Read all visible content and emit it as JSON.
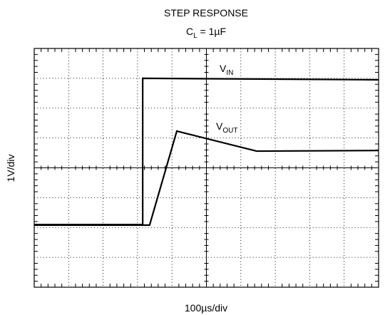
{
  "chart_data": {
    "type": "line",
    "title": "STEP RESPONSE",
    "subtitle": {
      "main": "C",
      "sub": "L",
      "rest": " = 1µF"
    },
    "xlabel": "100µs/div",
    "ylabel": "1V/div",
    "xlim": [
      0,
      1000
    ],
    "ylim": [
      0,
      8
    ],
    "xticks": [
      0,
      100,
      200,
      300,
      400,
      500,
      600,
      700,
      800,
      900,
      1000
    ],
    "yticks": [
      0,
      1,
      2,
      3,
      4,
      5,
      6,
      7,
      8
    ],
    "grid": true,
    "series": [
      {
        "name": {
          "main": "V",
          "sub": "IN"
        },
        "color": "#000000",
        "x": [
          0,
          315,
          315,
          1000
        ],
        "values": [
          2.1,
          2.1,
          7.0,
          6.95
        ]
      },
      {
        "name": {
          "main": "V",
          "sub": "OUT"
        },
        "color": "#000000",
        "x": [
          0,
          335,
          414,
          646,
          1000
        ],
        "values": [
          2.08,
          2.08,
          5.23,
          4.56,
          4.58
        ]
      }
    ]
  }
}
